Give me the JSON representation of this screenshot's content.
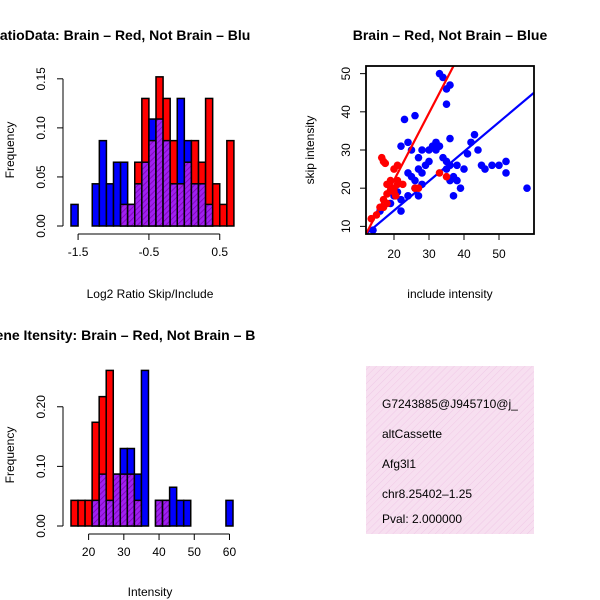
{
  "chart_data": [
    {
      "type": "bar",
      "title": "RatioData: Brain – Red, Not Brain – Blu",
      "xlabel": "Log2 Ratio Skip/Include",
      "ylabel": "Frequency",
      "xlim": [
        -1.6,
        0.8
      ],
      "ylim": [
        0,
        0.16
      ],
      "xticks": [
        -1.5,
        -0.5,
        0.5
      ],
      "xtick_labels": [
        "-1.5",
        "-0.5",
        "0.5"
      ],
      "yticks": [
        0,
        0.05,
        0.1,
        0.15
      ],
      "ytick_labels": [
        "0.00",
        "0.05",
        "0.10",
        "0.15"
      ],
      "bin_width": 0.1,
      "bin_starts": [
        -1.6,
        -1.5,
        -1.4,
        -1.3,
        -1.2,
        -1.1,
        -1.0,
        -0.9,
        -0.8,
        -0.7,
        -0.6,
        -0.5,
        -0.4,
        -0.3,
        -0.2,
        -0.1,
        0.0,
        0.1,
        0.2,
        0.3,
        0.4,
        0.5,
        0.6,
        0.7
      ],
      "series": [
        {
          "name": "Brain",
          "color": "#ff0000",
          "values": [
            0,
            0,
            0,
            0,
            0,
            0,
            0,
            0.022,
            0.022,
            0.065,
            0.13,
            0.087,
            0.152,
            0.13,
            0.087,
            0.043,
            0.065,
            0.087,
            0.065,
            0.13,
            0.043,
            0.022,
            0.087,
            0
          ]
        },
        {
          "name": "Not Brain",
          "color": "#0000ff",
          "values": [
            0.022,
            0,
            0,
            0.043,
            0.087,
            0.043,
            0.065,
            0.065,
            0.022,
            0.043,
            0.065,
            0.109,
            0.109,
            0.087,
            0.043,
            0.13,
            0.087,
            0.043,
            0.043,
            0.022,
            0,
            0,
            0,
            0
          ]
        }
      ]
    },
    {
      "type": "scatter",
      "title": "Brain – Red, Not Brain – Blue",
      "xlabel": "include intensity",
      "ylabel": "skip intensity",
      "xlim": [
        12,
        60
      ],
      "ylim": [
        8,
        52
      ],
      "xticks": [
        20,
        30,
        40,
        50
      ],
      "yticks": [
        10,
        20,
        30,
        40,
        50
      ],
      "series": [
        {
          "name": "Brain",
          "color": "#ff0000",
          "points": [
            [
              13.5,
              12
            ],
            [
              15,
              13
            ],
            [
              16,
              15
            ],
            [
              17,
              15
            ],
            [
              17,
              17
            ],
            [
              18,
              16
            ],
            [
              18,
              18.5
            ],
            [
              19,
              19.5
            ],
            [
              18,
              21
            ],
            [
              19,
              22
            ],
            [
              20,
              19
            ],
            [
              20,
              20
            ],
            [
              20.5,
              18
            ],
            [
              21,
              21
            ],
            [
              21,
              22
            ],
            [
              17,
              27
            ],
            [
              17.5,
              26.5
            ],
            [
              20,
              25
            ],
            [
              21,
              26
            ],
            [
              16.5,
              28
            ],
            [
              22.5,
              21
            ],
            [
              26,
              20
            ],
            [
              33,
              24
            ],
            [
              35,
              23
            ],
            [
              27,
              20
            ]
          ],
          "fit": [
            [
              12,
              8
            ],
            [
              37,
              52
            ]
          ]
        },
        {
          "name": "Not Brain",
          "color": "#0000ff",
          "points": [
            [
              14,
              9
            ],
            [
              16,
              14
            ],
            [
              19,
              16
            ],
            [
              20,
              18
            ],
            [
              21,
              19
            ],
            [
              22,
              17
            ],
            [
              22,
              14
            ],
            [
              24,
              18
            ],
            [
              24,
              24
            ],
            [
              25,
              23
            ],
            [
              26,
              20
            ],
            [
              26,
              22
            ],
            [
              27,
              18
            ],
            [
              27,
              25
            ],
            [
              28,
              21
            ],
            [
              28,
              24
            ],
            [
              29,
              26
            ],
            [
              30,
              30
            ],
            [
              31,
              31
            ],
            [
              32,
              32
            ],
            [
              33,
              31
            ],
            [
              34,
              28
            ],
            [
              35,
              25
            ],
            [
              35,
              27
            ],
            [
              36,
              22
            ],
            [
              36,
              26
            ],
            [
              37,
              23
            ],
            [
              37,
              18
            ],
            [
              38,
              22
            ],
            [
              39,
              20
            ],
            [
              40,
              25
            ],
            [
              41,
              29
            ],
            [
              42,
              32
            ],
            [
              43,
              34
            ],
            [
              44,
              30
            ],
            [
              45,
              26
            ],
            [
              46,
              25
            ],
            [
              48,
              26
            ],
            [
              50,
              26
            ],
            [
              52,
              24
            ],
            [
              52,
              27
            ],
            [
              58,
              20
            ],
            [
              23,
              38
            ],
            [
              24,
              32
            ],
            [
              25,
              30
            ],
            [
              26,
              39
            ],
            [
              27,
              28
            ],
            [
              28,
              30
            ],
            [
              30,
              27
            ],
            [
              32,
              30
            ],
            [
              33,
              50
            ],
            [
              34,
              49
            ],
            [
              35,
              42
            ],
            [
              35,
              46
            ],
            [
              36,
              47
            ],
            [
              36,
              33
            ],
            [
              22,
              31
            ],
            [
              38,
              26
            ]
          ],
          "fit": [
            [
              12,
              8
            ],
            [
              60,
              45
            ]
          ]
        }
      ]
    },
    {
      "type": "bar",
      "title": "Gene Itensity: Brain – Red, Not Brain – B",
      "xlabel": "Intensity",
      "ylabel": "Frequency",
      "xlim": [
        15,
        61
      ],
      "ylim": [
        0,
        0.26
      ],
      "xticks": [
        20,
        30,
        40,
        50,
        60
      ],
      "xtick_labels": [
        "20",
        "30",
        "40",
        "50",
        "60"
      ],
      "yticks": [
        0,
        0.1,
        0.2
      ],
      "ytick_labels": [
        "0.00",
        "0.10",
        "0.20"
      ],
      "bin_width": 2,
      "bin_starts": [
        15,
        17,
        19,
        21,
        23,
        25,
        27,
        29,
        31,
        33,
        35,
        37,
        39,
        41,
        43,
        45,
        47,
        49,
        51,
        53,
        55,
        57,
        59
      ],
      "series": [
        {
          "name": "Brain",
          "color": "#ff0000",
          "values": [
            0.043,
            0.043,
            0.043,
            0.174,
            0.217,
            0.261,
            0.087,
            0.087,
            0.087,
            0.043,
            0,
            0,
            0.043,
            0.043,
            0,
            0,
            0,
            0,
            0,
            0,
            0,
            0,
            0
          ]
        },
        {
          "name": "Not Brain",
          "color": "#0000ff",
          "values": [
            0,
            0,
            0,
            0.043,
            0.087,
            0.043,
            0.087,
            0.13,
            0.13,
            0.087,
            0.261,
            0,
            0.043,
            0.043,
            0.065,
            0.043,
            0.043,
            0,
            0,
            0,
            0,
            0,
            0.043
          ]
        }
      ]
    }
  ],
  "info_box": {
    "event_id": "G7243885@J945710@j_",
    "event_type": "altCassette",
    "gene": "Afg3l1",
    "location": "chr8.25402–1.25",
    "pval": "Pval: 2.000000",
    "pval_color": "#aa0000",
    "background": "#f7dff0"
  }
}
